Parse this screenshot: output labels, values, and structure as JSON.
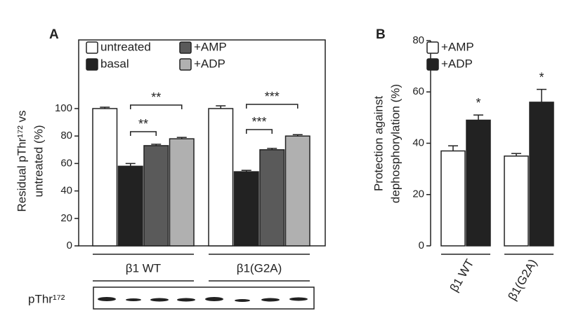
{
  "chart_data": [
    {
      "type": "bar",
      "panel": "A",
      "ylabel": [
        "Residual pThr¹⁷² vs",
        "untreated (%)"
      ],
      "categories": [
        "β1 WT",
        "β1(G2A)"
      ],
      "series": [
        {
          "name": "untreated",
          "color": "#ffffff",
          "values": [
            100,
            100
          ],
          "errors": [
            1,
            2
          ]
        },
        {
          "name": "basal",
          "color": "#222222",
          "values": [
            58,
            54
          ],
          "errors": [
            2,
            1
          ]
        },
        {
          "name": "+AMP",
          "color": "#5a5a5a",
          "values": [
            73,
            70
          ],
          "errors": [
            1,
            1
          ]
        },
        {
          "name": "+ADP",
          "color": "#b0b0b0",
          "values": [
            78,
            80
          ],
          "errors": [
            1,
            1
          ]
        }
      ],
      "ylim": [
        0,
        150
      ],
      "yticks": [
        0,
        20,
        40,
        60,
        80,
        100
      ],
      "annotations": [
        "**",
        "**",
        "***",
        "***"
      ],
      "blot_label": "pThr¹⁷²"
    },
    {
      "type": "bar",
      "panel": "B",
      "ylabel": [
        "Protection against",
        "dephosphorylation (%)"
      ],
      "categories": [
        "β1 WT",
        "β1(G2A)"
      ],
      "series": [
        {
          "name": "+AMP",
          "color": "#ffffff",
          "values": [
            37,
            35
          ],
          "errors": [
            2,
            1
          ]
        },
        {
          "name": "+ADP",
          "color": "#222222",
          "values": [
            49,
            56
          ],
          "errors": [
            2,
            5
          ]
        }
      ],
      "ylim": [
        0,
        80
      ],
      "yticks": [
        0,
        20,
        40,
        60,
        80
      ],
      "annotations": [
        "*",
        "*"
      ]
    }
  ]
}
